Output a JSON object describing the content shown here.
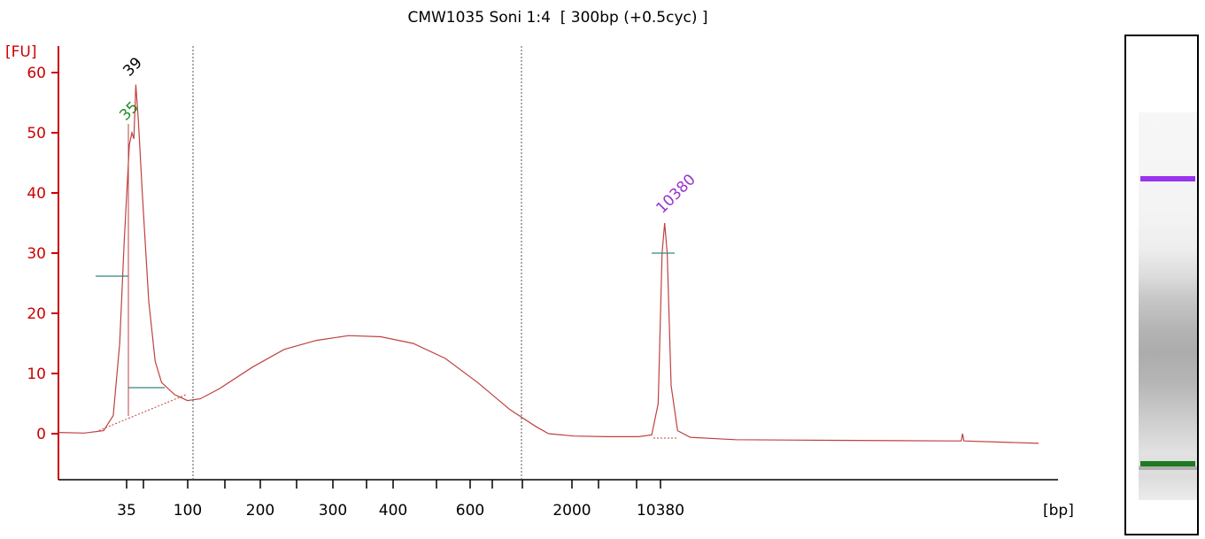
{
  "chart_data": {
    "type": "line",
    "title": "CMW1035 Soni 1:4  [ 300bp (+0.5cyc) ]",
    "ylabel": "[FU]",
    "xlabel": "[bp]",
    "ylim": [
      -8,
      64
    ],
    "yticks": [
      0,
      10,
      20,
      30,
      40,
      50,
      60
    ],
    "x_scale": "nonlinear (bp)",
    "xticks": [
      "35",
      "",
      "100",
      "",
      "200",
      "",
      "300",
      "",
      "400",
      "",
      "600",
      "",
      "",
      "2000",
      "",
      "",
      "10380"
    ],
    "markers": [
      {
        "label": "35",
        "x_bp": 35,
        "y": 50,
        "color": "#228B22"
      },
      {
        "label": "39",
        "x_bp": 39,
        "y": 58,
        "color": "#000000"
      },
      {
        "label": "10380",
        "x_bp": 10380,
        "y": 35,
        "color": "#9933CC"
      }
    ],
    "series": [
      {
        "color": "#C04040",
        "points": [
          [
            0.0,
            0.2
          ],
          [
            0.04,
            0.1
          ],
          [
            0.07,
            0.5
          ],
          [
            0.085,
            3
          ],
          [
            0.095,
            15
          ],
          [
            0.102,
            32
          ],
          [
            0.11,
            48
          ],
          [
            0.114,
            50
          ],
          [
            0.117,
            49
          ],
          [
            0.12,
            58
          ],
          [
            0.124,
            52
          ],
          [
            0.13,
            40
          ],
          [
            0.14,
            22
          ],
          [
            0.15,
            12
          ],
          [
            0.16,
            8.5
          ],
          [
            0.18,
            6.5
          ],
          [
            0.2,
            5.5
          ],
          [
            0.22,
            5.8
          ],
          [
            0.25,
            7.5
          ],
          [
            0.3,
            11
          ],
          [
            0.35,
            14
          ],
          [
            0.4,
            15.5
          ],
          [
            0.45,
            16.3
          ],
          [
            0.5,
            16.1
          ],
          [
            0.55,
            15
          ],
          [
            0.6,
            12.5
          ],
          [
            0.65,
            8.5
          ],
          [
            0.7,
            4
          ],
          [
            0.74,
            1.2
          ],
          [
            0.76,
            0
          ],
          [
            0.8,
            -0.4
          ],
          [
            0.85,
            -0.5
          ],
          [
            0.9,
            -0.5
          ],
          [
            0.92,
            -0.2
          ],
          [
            0.93,
            5
          ],
          [
            0.936,
            30
          ],
          [
            0.94,
            35
          ],
          [
            0.944,
            30
          ],
          [
            0.95,
            8
          ],
          [
            0.96,
            0.5
          ],
          [
            0.98,
            -0.6
          ],
          [
            1.05,
            -1.0
          ],
          [
            1.2,
            -1.1
          ],
          [
            1.38,
            -1.2
          ],
          [
            1.4,
            -1.2
          ],
          [
            1.402,
            0
          ],
          [
            1.404,
            -1.2
          ],
          [
            1.52,
            -1.6
          ]
        ]
      }
    ],
    "annotations": {
      "dotted_region_lines_bp": [
        "100",
        "2000"
      ],
      "peak_baseline": "dotted"
    }
  },
  "gel": {
    "upper_band_color": "#9933EE",
    "lower_band_color": "#1E7A1E"
  }
}
